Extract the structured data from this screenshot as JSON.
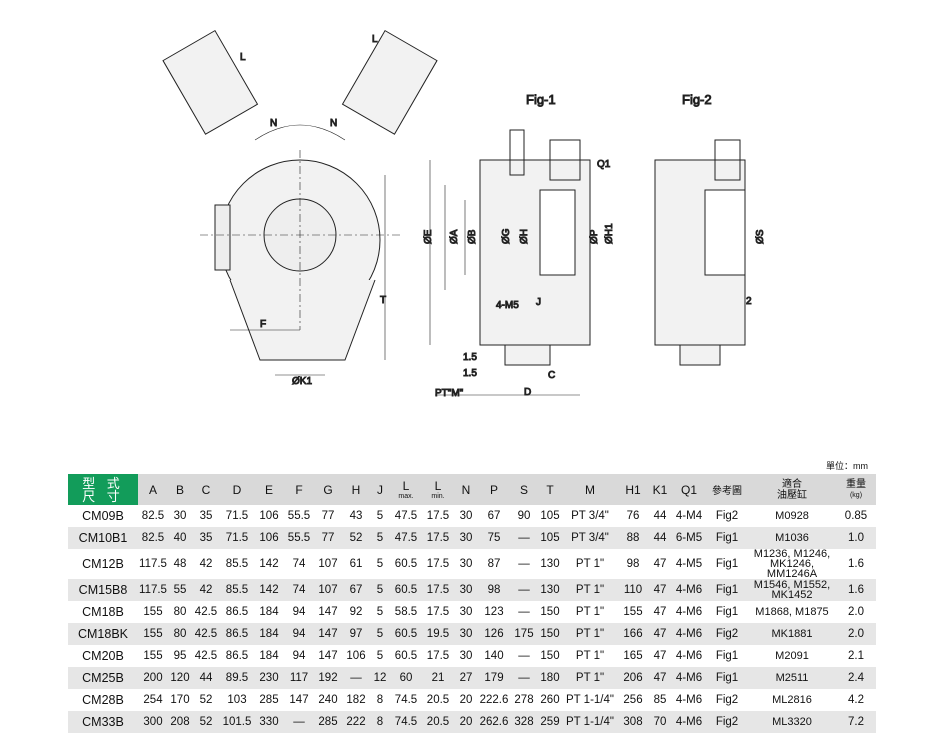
{
  "drawing": {
    "labels": {
      "n1": "N",
      "n2": "N",
      "l1": "L",
      "l2": "L",
      "f": "F",
      "t": "T",
      "k1": "ØK1",
      "fig1": "Fig-1",
      "fig2": "Fig-2",
      "e": "ØE",
      "a": "ØA",
      "b": "ØB",
      "g": "ØG",
      "h": "ØH",
      "p": "ØP",
      "h1": "ØH1",
      "q1": "Q1",
      "m5": "4-M5",
      "j": "J",
      "d15a": "1.5",
      "d15b": "1.5",
      "c": "C",
      "d": "D",
      "ptm": "PT\"M\"",
      "s": "ØS",
      "two": "2"
    }
  },
  "unit": "單位：mm",
  "table": {
    "header": {
      "model": "型 式\n尺 寸",
      "cols": [
        "A",
        "B",
        "C",
        "D",
        "E",
        "F",
        "G",
        "H",
        "J"
      ],
      "lmax": "L",
      "lmax_sub": "max.",
      "lmin": "L",
      "lmin_sub": "min.",
      "cols2": [
        "N",
        "P",
        "S",
        "T",
        "M",
        "H1",
        "K1",
        "Q1"
      ],
      "ref": "參考圖",
      "cyl1": "適合",
      "cyl2": "油壓缸",
      "wt": "重量",
      "wt_unit": "(kg)"
    },
    "rows": [
      [
        "CM09B",
        "82.5",
        "30",
        "35",
        "71.5",
        "106",
        "55.5",
        "77",
        "43",
        "5",
        "47.5",
        "17.5",
        "30",
        "67",
        "90",
        "105",
        "PT 3/4\"",
        "76",
        "44",
        "4-M4",
        "Fig2",
        "M0928",
        "0.85"
      ],
      [
        "CM10B1",
        "82.5",
        "40",
        "35",
        "71.5",
        "106",
        "55.5",
        "77",
        "52",
        "5",
        "47.5",
        "17.5",
        "30",
        "75",
        "—",
        "105",
        "PT 3/4\"",
        "88",
        "44",
        "6-M5",
        "Fig1",
        "M1036",
        "1.0"
      ],
      [
        "CM12B",
        "117.5",
        "48",
        "42",
        "85.5",
        "142",
        "74",
        "107",
        "61",
        "5",
        "60.5",
        "17.5",
        "30",
        "87",
        "—",
        "130",
        "PT 1\"",
        "98",
        "47",
        "4-M5",
        "Fig1",
        "M1236, M1246,\nMK1246, MM1246A",
        "1.6"
      ],
      [
        "CM15B8",
        "117.5",
        "55",
        "42",
        "85.5",
        "142",
        "74",
        "107",
        "67",
        "5",
        "60.5",
        "17.5",
        "30",
        "98",
        "—",
        "130",
        "PT 1\"",
        "110",
        "47",
        "4-M6",
        "Fig1",
        "M1546, M1552,\nMK1452",
        "1.6"
      ],
      [
        "CM18B",
        "155",
        "80",
        "42.5",
        "86.5",
        "184",
        "94",
        "147",
        "92",
        "5",
        "58.5",
        "17.5",
        "30",
        "123",
        "—",
        "150",
        "PT 1\"",
        "155",
        "47",
        "4-M6",
        "Fig1",
        "M1868, M1875",
        "2.0"
      ],
      [
        "CM18BK",
        "155",
        "80",
        "42.5",
        "86.5",
        "184",
        "94",
        "147",
        "97",
        "5",
        "60.5",
        "19.5",
        "30",
        "126",
        "175",
        "150",
        "PT 1\"",
        "166",
        "47",
        "4-M6",
        "Fig2",
        "MK1881",
        "2.0"
      ],
      [
        "CM20B",
        "155",
        "95",
        "42.5",
        "86.5",
        "184",
        "94",
        "147",
        "106",
        "5",
        "60.5",
        "17.5",
        "30",
        "140",
        "—",
        "150",
        "PT 1\"",
        "165",
        "47",
        "4-M6",
        "Fig1",
        "M2091",
        "2.1"
      ],
      [
        "CM25B",
        "200",
        "120",
        "44",
        "89.5",
        "230",
        "117",
        "192",
        "—",
        "12",
        "60",
        "21",
        "27",
        "179",
        "—",
        "180",
        "PT 1\"",
        "206",
        "47",
        "4-M6",
        "Fig1",
        "M2511",
        "2.4"
      ],
      [
        "CM28B",
        "254",
        "170",
        "52",
        "103",
        "285",
        "147",
        "240",
        "182",
        "8",
        "74.5",
        "20.5",
        "20",
        "222.6",
        "278",
        "260",
        "PT 1-1/4\"",
        "256",
        "85",
        "4-M6",
        "Fig2",
        "ML2816",
        "4.2"
      ],
      [
        "CM33B",
        "300",
        "208",
        "52",
        "101.5",
        "330",
        "—",
        "285",
        "222",
        "8",
        "74.5",
        "20.5",
        "20",
        "262.6",
        "328",
        "259",
        "PT 1-1/4\"",
        "308",
        "70",
        "4-M6",
        "Fig2",
        "ML3320",
        "7.2"
      ]
    ]
  },
  "colors": {
    "header_green": "#129c5a",
    "header_gray": "#d9d9d9",
    "row_alt": "#e6e6e6"
  }
}
